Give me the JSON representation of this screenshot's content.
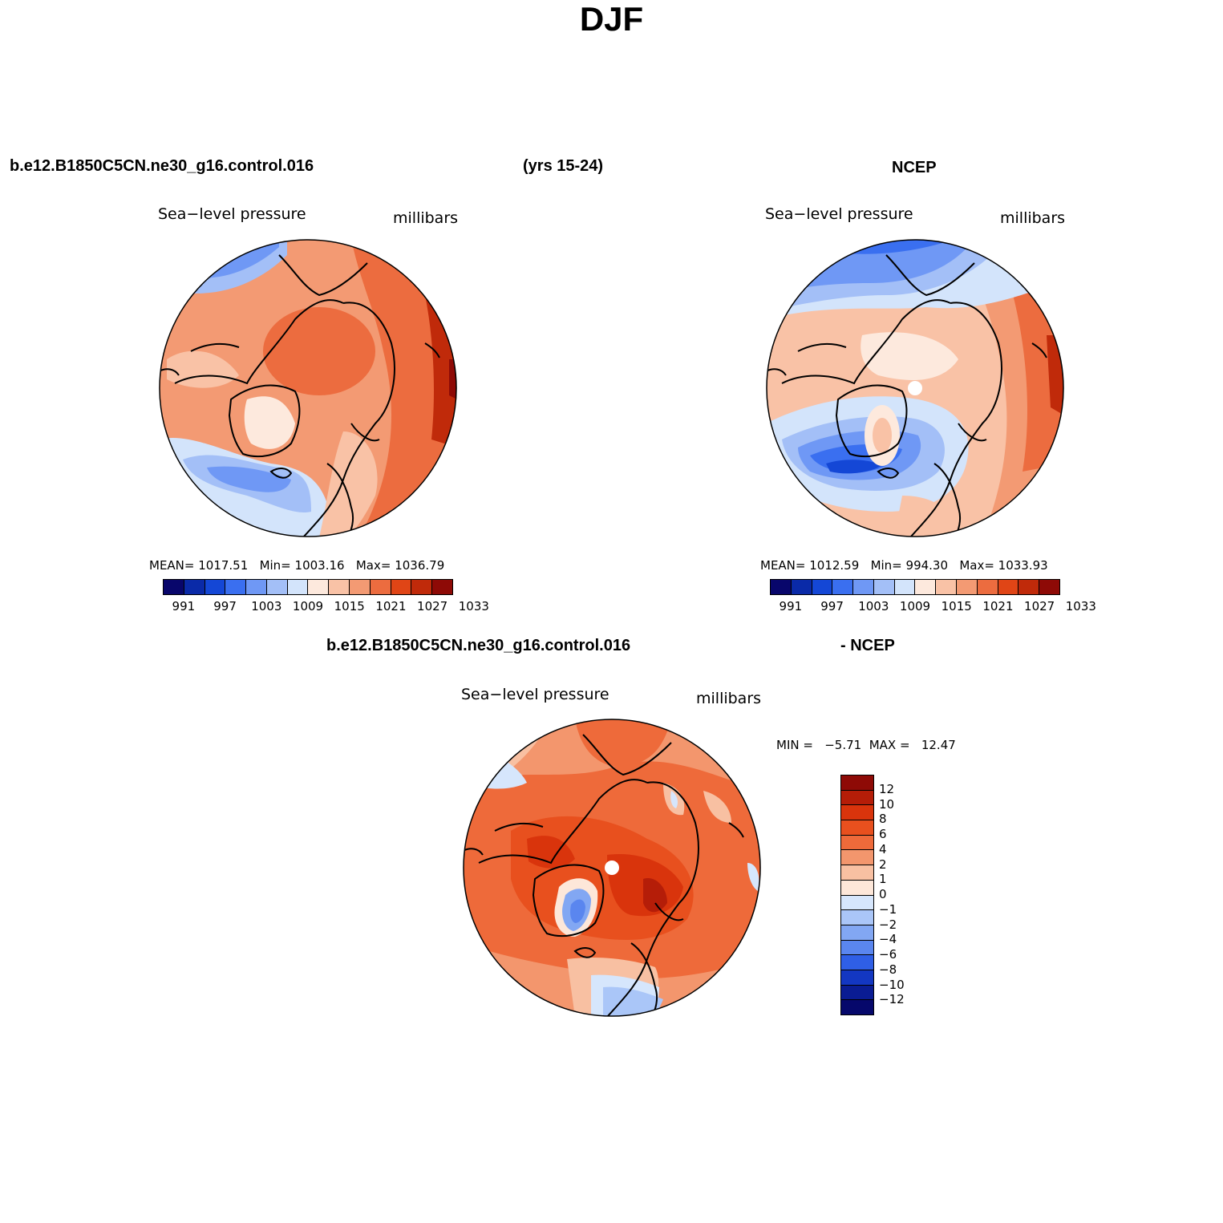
{
  "page_title": "DJF",
  "period_label": "(yrs 15-24)",
  "case_name": "b.e12.B1850C5CN.ne30_g16.control.016",
  "panels": {
    "model": {
      "case_label": "b.e12.B1850C5CN.ne30_g16.control.016",
      "variable": "Sea−level pressure",
      "units": "millibars",
      "stats": "MEAN= 1017.51   Min= 1003.16   Max= 1036.79"
    },
    "obs": {
      "case_label": "NCEP",
      "variable": "Sea−level pressure",
      "units": "millibars",
      "stats": "MEAN= 1012.59   Min= 994.30   Max= 1033.93"
    },
    "diff": {
      "case_label": "b.e12.B1850C5CN.ne30_g16.control.016",
      "minus_label": "- NCEP",
      "variable": "Sea−level pressure",
      "units": "millibars",
      "stats": "MIN =   −5.71  MAX =   12.47"
    }
  },
  "abs_colorbar": {
    "labels": [
      "991",
      "997",
      "1003",
      "1009",
      "1015",
      "1021",
      "1027",
      "1033"
    ],
    "colors": [
      "#08066b",
      "#0a2aa8",
      "#1447d6",
      "#3a6ff0",
      "#6f98f5",
      "#a3bff7",
      "#d3e4fb",
      "#fde9dd",
      "#f9c2a6",
      "#f39a73",
      "#ec6c3f",
      "#e04516",
      "#c02a0a",
      "#8e0a06"
    ]
  },
  "diff_colorbar": {
    "labels": [
      "12",
      "10",
      "8",
      "6",
      "4",
      "2",
      "1",
      "0",
      "−1",
      "−2",
      "−4",
      "−6",
      "−8",
      "−10",
      "−12"
    ],
    "colors": [
      "#8e0a06",
      "#b51d08",
      "#d9340c",
      "#e8501e",
      "#ee6a3a",
      "#f3966d",
      "#f8c0a2",
      "#fde7d9",
      "#d6e6fc",
      "#aac6f8",
      "#82a7f3",
      "#5a86ef",
      "#2f5fe6",
      "#1337c2",
      "#0a1c93",
      "#06086b"
    ]
  }
}
